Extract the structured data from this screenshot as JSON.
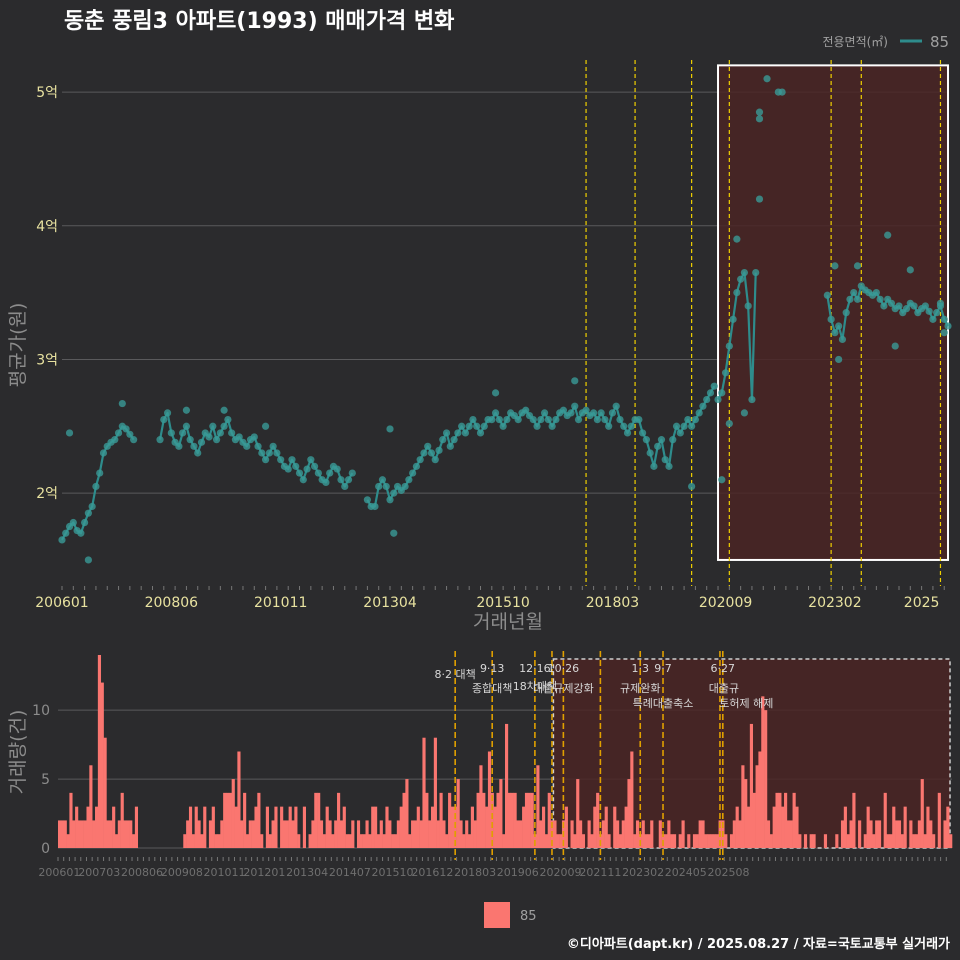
{
  "title": "동춘 풍림3 아파트(1993) 매매가격 변화",
  "footer": "©디아파트(dapt.kr) / 2025.08.27 / 자료=국토교통부 실거래가",
  "colors": {
    "background": "#2b2b2d",
    "price_line": "#2e8c8c",
    "price_point": "#3a9a96",
    "bar": "#fa7670",
    "policy_line": "#f0d000",
    "policy_line_bottom": "#e0a000",
    "highlight_fill": "#4a2424",
    "grid": "#5a5a5c",
    "axis_text": "#e8e2a0",
    "axis_title": "#8c8c8c"
  },
  "chart_data": [
    {
      "type": "line",
      "name": "price",
      "ylabel": "평균가(원)",
      "xlabel": "거래년월",
      "legend_title": "전용면적(㎡)",
      "legend_entry": "85",
      "ylim": [
        1.35,
        5.3
      ],
      "yticks": [
        {
          "v": 2,
          "label": "2억"
        },
        {
          "v": 3,
          "label": "3억"
        },
        {
          "v": 4,
          "label": "4억"
        },
        {
          "v": 5,
          "label": "5억"
        }
      ],
      "xticks": [
        "200601",
        "200806",
        "201011",
        "201304",
        "201510",
        "201803",
        "202009",
        "202302",
        "2025"
      ],
      "x_start": "200601",
      "x_end": "202508",
      "highlight": {
        "from": "202007",
        "to": "202508",
        "ymin": 1.5,
        "ymax": 5.2
      },
      "policy_months": [
        "201708",
        "201809",
        "201912",
        "202010",
        "202301",
        "202309",
        "202506"
      ],
      "series": [
        {
          "name": "85",
          "x": [
            "200601",
            "200602",
            "200603",
            "200604",
            "200605",
            "200606",
            "200607",
            "200608",
            "200609",
            "200610",
            "200611",
            "200612",
            "200701",
            "200702",
            "200703",
            "200704",
            "200705",
            "200706",
            "200707",
            "200708"
          ],
          "values": [
            1.65,
            1.7,
            1.75,
            1.78,
            1.72,
            1.7,
            1.78,
            1.85,
            1.9,
            2.05,
            2.15,
            2.3,
            2.35,
            2.38,
            2.4,
            2.45,
            2.5,
            2.48,
            2.44,
            2.4
          ]
        },
        {
          "name": "85",
          "x": [
            "200803",
            "200804",
            "200805",
            "200806",
            "200807",
            "200808",
            "200809",
            "200810",
            "200811",
            "200812",
            "200901",
            "200902",
            "200903",
            "200904",
            "200905",
            "200906",
            "200907",
            "200908",
            "200909",
            "200910",
            "200911",
            "200912",
            "201001",
            "201002",
            "201003",
            "201004",
            "201005",
            "201006",
            "201007",
            "201008",
            "201009",
            "201010",
            "201011",
            "201012",
            "201101",
            "201102",
            "201103",
            "201104",
            "201105",
            "201106",
            "201107",
            "201108",
            "201109",
            "201110",
            "201111",
            "201112",
            "201201",
            "201202",
            "201203",
            "201204",
            "201205",
            "201206"
          ],
          "values": [
            2.4,
            2.55,
            2.6,
            2.45,
            2.38,
            2.35,
            2.45,
            2.5,
            2.4,
            2.35,
            2.3,
            2.38,
            2.45,
            2.42,
            2.5,
            2.4,
            2.45,
            2.5,
            2.55,
            2.45,
            2.4,
            2.42,
            2.38,
            2.35,
            2.4,
            2.42,
            2.35,
            2.3,
            2.25,
            2.3,
            2.35,
            2.3,
            2.25,
            2.2,
            2.18,
            2.25,
            2.2,
            2.15,
            2.1,
            2.18,
            2.25,
            2.2,
            2.15,
            2.1,
            2.08,
            2.15,
            2.2,
            2.18,
            2.1,
            2.05,
            2.1,
            2.15
          ]
        },
        {
          "name": "85",
          "x": [
            "201210",
            "201211",
            "201212",
            "201301",
            "201302",
            "201303",
            "201304",
            "201305",
            "201306",
            "201307",
            "201308",
            "201309",
            "201310",
            "201311",
            "201312",
            "201401",
            "201402",
            "201403",
            "201404",
            "201405",
            "201406",
            "201407",
            "201408",
            "201409",
            "201410",
            "201411",
            "201412",
            "201501",
            "201502",
            "201503",
            "201504",
            "201505",
            "201506",
            "201507",
            "201508",
            "201509",
            "201510",
            "201511",
            "201512",
            "201601",
            "201602",
            "201603",
            "201604",
            "201605",
            "201606",
            "201607",
            "201608",
            "201609",
            "201610",
            "201611",
            "201612",
            "201701",
            "201702",
            "201703",
            "201704",
            "201705",
            "201706",
            "201707",
            "201708",
            "201709",
            "201710",
            "201711",
            "201712",
            "201801",
            "201802",
            "201803",
            "201804",
            "201805",
            "201806",
            "201807",
            "201808",
            "201809",
            "201810",
            "201811",
            "201812",
            "201901",
            "201902",
            "201903",
            "201904",
            "201905",
            "201906",
            "201907",
            "201908",
            "201909",
            "201910",
            "201911",
            "201912",
            "202001",
            "202002",
            "202003",
            "202004",
            "202005",
            "202006"
          ],
          "values": [
            1.95,
            1.9,
            1.9,
            2.05,
            2.1,
            2.05,
            1.95,
            2.0,
            2.05,
            2.02,
            2.05,
            2.1,
            2.15,
            2.2,
            2.25,
            2.3,
            2.35,
            2.3,
            2.25,
            2.32,
            2.4,
            2.45,
            2.35,
            2.4,
            2.45,
            2.5,
            2.45,
            2.5,
            2.55,
            2.5,
            2.45,
            2.5,
            2.55,
            2.55,
            2.6,
            2.55,
            2.5,
            2.55,
            2.6,
            2.58,
            2.55,
            2.6,
            2.62,
            2.58,
            2.55,
            2.5,
            2.55,
            2.6,
            2.55,
            2.5,
            2.55,
            2.6,
            2.62,
            2.58,
            2.6,
            2.65,
            2.55,
            2.6,
            2.62,
            2.58,
            2.6,
            2.55,
            2.6,
            2.55,
            2.5,
            2.6,
            2.65,
            2.55,
            2.5,
            2.45,
            2.5,
            2.55,
            2.55,
            2.45,
            2.4,
            2.3,
            2.2,
            2.35,
            2.4,
            2.25,
            2.2,
            2.4,
            2.5,
            2.45,
            2.5,
            2.55,
            2.5,
            2.55,
            2.6,
            2.65,
            2.7,
            2.75,
            2.8
          ]
        },
        {
          "name": "85",
          "x": [
            "202007",
            "202008",
            "202009",
            "202010",
            "202011",
            "202012",
            "202101",
            "202102",
            "202103",
            "202104",
            "202105"
          ],
          "values": [
            2.7,
            2.75,
            2.9,
            3.1,
            3.3,
            3.5,
            3.6,
            3.65,
            3.4,
            2.7,
            3.65
          ]
        },
        {
          "name": "85",
          "x": [
            "202212",
            "202301",
            "202302",
            "202303",
            "202304",
            "202305",
            "202306",
            "202307",
            "202308",
            "202309",
            "202310",
            "202311",
            "202312",
            "202401",
            "202402",
            "202403",
            "202404",
            "202405",
            "202406",
            "202407",
            "202408",
            "202409",
            "202410",
            "202411",
            "202412",
            "202501",
            "202502",
            "202503",
            "202504",
            "202505",
            "202506",
            "202507",
            "202508"
          ],
          "values": [
            3.48,
            3.3,
            3.2,
            3.25,
            3.15,
            3.35,
            3.45,
            3.5,
            3.45,
            3.55,
            3.52,
            3.5,
            3.48,
            3.5,
            3.45,
            3.4,
            3.45,
            3.42,
            3.38,
            3.4,
            3.35,
            3.38,
            3.42,
            3.4,
            3.35,
            3.38,
            3.4,
            3.36,
            3.3,
            3.35,
            3.4,
            3.3,
            3.25
          ]
        }
      ],
      "extra_points": [
        {
          "x": "200603",
          "y": 2.45
        },
        {
          "x": "200608",
          "y": 1.5
        },
        {
          "x": "200705",
          "y": 2.67
        },
        {
          "x": "200810",
          "y": 2.62
        },
        {
          "x": "200908",
          "y": 2.62
        },
        {
          "x": "201007",
          "y": 2.5
        },
        {
          "x": "201305",
          "y": 1.7
        },
        {
          "x": "201304",
          "y": 2.48
        },
        {
          "x": "201508",
          "y": 2.75
        },
        {
          "x": "201705",
          "y": 2.84
        },
        {
          "x": "201912",
          "y": 2.05
        },
        {
          "x": "202008",
          "y": 2.1
        },
        {
          "x": "202010",
          "y": 2.52
        },
        {
          "x": "202012",
          "y": 3.9
        },
        {
          "x": "202102",
          "y": 2.6
        },
        {
          "x": "202106",
          "y": 4.2
        },
        {
          "x": "202106",
          "y": 4.8
        },
        {
          "x": "202106",
          "y": 4.85
        },
        {
          "x": "202108",
          "y": 5.1
        },
        {
          "x": "202111",
          "y": 5.0
        },
        {
          "x": "202112",
          "y": 5.0
        },
        {
          "x": "202302",
          "y": 3.7
        },
        {
          "x": "202303",
          "y": 3.0
        },
        {
          "x": "202308",
          "y": 3.7
        },
        {
          "x": "202404",
          "y": 3.93
        },
        {
          "x": "202410",
          "y": 3.67
        },
        {
          "x": "202406",
          "y": 3.1
        },
        {
          "x": "202506",
          "y": 3.42
        },
        {
          "x": "202507",
          "y": 3.2
        }
      ]
    },
    {
      "type": "bar",
      "name": "volume",
      "ylabel": "거래량(건)",
      "ylim": [
        0,
        14
      ],
      "yticks": [
        {
          "v": 0,
          "label": "0"
        },
        {
          "v": 5,
          "label": "5"
        },
        {
          "v": 10,
          "label": "10"
        }
      ],
      "xticks": [
        "200601",
        "200703",
        "200806",
        "200908",
        "201011",
        "201201",
        "201304",
        "201407",
        "201510",
        "201612",
        "201803",
        "201906",
        "202009",
        "202111",
        "202302",
        "202405",
        "202508"
      ],
      "legend_entry": "85",
      "series": [
        {
          "name": "85",
          "values": [
            2,
            2,
            2,
            1,
            4,
            2,
            3,
            2,
            2,
            2,
            3,
            6,
            2,
            3,
            14,
            12,
            8,
            2,
            2,
            3,
            1,
            2,
            4,
            2,
            2,
            2,
            1,
            3,
            0,
            0,
            0,
            0,
            0,
            0,
            0,
            0,
            0,
            0,
            0,
            0,
            0,
            0,
            0,
            0,
            1,
            2,
            3,
            1,
            3,
            2,
            1,
            3,
            0,
            2,
            3,
            1,
            1,
            2,
            4,
            4,
            4,
            5,
            3,
            7,
            2,
            4,
            1,
            2,
            2,
            3,
            4,
            1,
            0,
            3,
            1,
            2,
            3,
            0,
            3,
            2,
            2,
            3,
            2,
            3,
            1,
            0,
            3,
            0,
            1,
            2,
            4,
            4,
            2,
            1,
            3,
            2,
            1,
            2,
            4,
            2,
            3,
            1,
            1,
            2,
            0,
            2,
            1,
            1,
            2,
            1,
            3,
            3,
            1,
            2,
            1,
            3,
            2,
            1,
            1,
            2,
            3,
            4,
            5,
            1,
            2,
            2,
            3,
            2,
            8,
            4,
            2,
            3,
            8,
            2,
            4,
            2,
            1,
            4,
            3,
            3,
            5,
            2,
            1,
            2,
            1,
            3,
            2,
            4,
            6,
            4,
            3,
            7,
            4,
            3,
            4,
            5,
            1,
            9,
            4,
            4,
            4,
            2,
            2,
            3,
            4,
            4,
            4,
            1,
            6,
            2,
            3,
            1,
            4,
            2,
            2,
            1,
            1,
            2,
            3,
            0,
            2,
            1,
            5,
            2,
            1,
            0,
            2,
            1,
            3,
            4,
            1,
            2,
            3,
            1,
            0,
            3,
            2,
            1,
            2,
            3,
            5,
            7,
            1,
            2,
            1,
            2,
            1,
            1,
            2,
            0,
            0,
            2,
            1,
            1,
            2,
            1,
            1,
            0,
            1,
            2,
            0,
            1,
            0,
            1,
            1,
            2,
            2,
            1,
            1,
            1,
            1,
            1,
            2,
            2,
            1,
            0,
            1,
            2,
            3,
            2,
            6,
            5,
            3,
            9,
            4,
            6,
            7,
            11,
            10,
            2,
            1,
            3,
            4,
            4,
            3,
            4,
            2,
            2,
            4,
            3,
            1,
            0,
            1,
            0,
            1,
            1,
            0,
            0,
            0,
            1,
            0,
            0,
            0,
            1,
            0,
            2,
            3,
            1,
            2,
            4,
            0,
            2,
            0,
            1,
            3,
            2,
            1,
            2,
            2,
            0,
            4,
            1,
            1,
            3,
            2,
            2,
            1,
            3,
            0,
            2,
            1,
            1,
            2,
            5,
            1,
            3,
            2,
            1,
            0,
            4,
            0,
            2,
            3,
            1
          ]
        }
      ],
      "start_month": "200601",
      "highlight": {
        "from": "202007",
        "to": "202508",
        "ymin": 0,
        "ymax": 14
      },
      "policy_months": [
        "201708",
        "201809",
        "201912",
        "202006",
        "202010",
        "202111",
        "202301",
        "202309",
        "202505",
        "202506"
      ],
      "annotations": [
        {
          "month": "201708",
          "line1": "",
          "line2": "8·2 대책"
        },
        {
          "month": "201809",
          "line1": "9·13",
          "line2": "종합대책"
        },
        {
          "month": "201912",
          "line1": "12·16",
          "line2": "18차대책"
        },
        {
          "month": "202010",
          "line1": "10·26",
          "line2": "대출규제강화"
        },
        {
          "month": "202301",
          "line1": "1·3",
          "line2": "규제완화"
        },
        {
          "month": "202309",
          "line1": "9·7",
          "line2": "특례대출축소"
        },
        {
          "month": "202506",
          "line1": "6·27",
          "line2": "대출규"
        },
        {
          "month": "202408",
          "line1": "",
          "line2": "토허제 해제"
        }
      ]
    }
  ]
}
